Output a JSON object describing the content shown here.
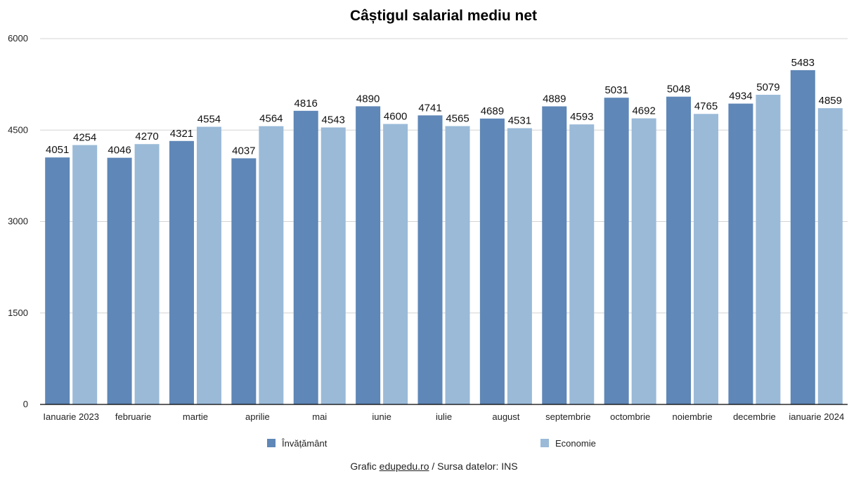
{
  "chart_data": {
    "type": "bar",
    "title": "Câștigul salarial mediu net",
    "xlabel": "",
    "ylabel": "",
    "ylim": [
      0,
      6000
    ],
    "yticks": [
      0,
      1500,
      3000,
      4500,
      6000
    ],
    "grid": true,
    "legend_position": "bottom",
    "categories": [
      "Ianuarie 2023",
      "februarie",
      "martie",
      "aprilie",
      "mai",
      "iunie",
      "iulie",
      "august",
      "septembrie",
      "octombrie",
      "noiembrie",
      "decembrie",
      "ianuarie 2024"
    ],
    "series": [
      {
        "name": "Învățământ",
        "color": "#5f87b7",
        "values": [
          4051,
          4046,
          4321,
          4037,
          4816,
          4890,
          4741,
          4689,
          4889,
          5031,
          5048,
          4934,
          5483
        ]
      },
      {
        "name": "Economie",
        "color": "#9abad8",
        "values": [
          4254,
          4270,
          4554,
          4564,
          4543,
          4600,
          4565,
          4531,
          4593,
          4692,
          4765,
          5079,
          4859
        ]
      }
    ]
  },
  "footer": {
    "prefix": "Grafic ",
    "link": "edupedu.ro",
    "suffix": " / Sursa datelor: INS"
  }
}
